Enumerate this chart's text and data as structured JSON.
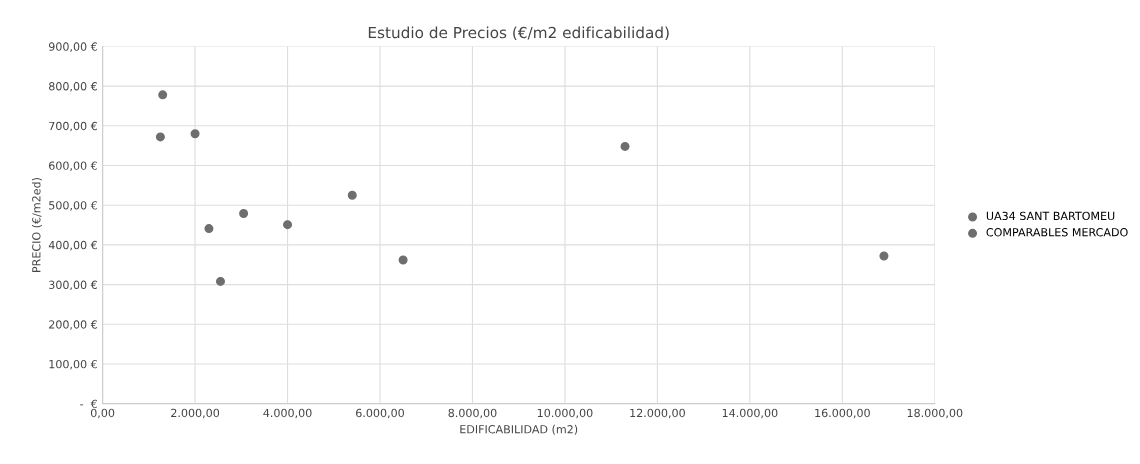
{
  "chart_data": {
    "type": "scatter",
    "title": "Estudio de Precios (€/m2 edificabilidad)",
    "xlabel": "EDIFICABILIDAD (m2)",
    "ylabel": "PRECIO (€/m2ed)",
    "series": [
      {
        "name": "UA34 SANT BARTOMEU",
        "color": "#6e6e6e",
        "x": [
          11300
        ],
        "values": [
          648
        ]
      },
      {
        "name": "COMPARABLES MERCADO",
        "color": "#6e6e6e",
        "x": [
          1250,
          1300,
          2000,
          2300,
          2550,
          3050,
          4000,
          5400,
          6500,
          16900
        ],
        "values": [
          672,
          778,
          680,
          441,
          308,
          479,
          451,
          525,
          362,
          372
        ]
      }
    ],
    "xlim": [
      0,
      18000
    ],
    "xticks": [
      {
        "value": 0,
        "label": "0,00"
      },
      {
        "value": 2000,
        "label": "2.000,00"
      },
      {
        "value": 4000,
        "label": "4.000,00"
      },
      {
        "value": 6000,
        "label": "6.000,00"
      },
      {
        "value": 8000,
        "label": "8.000,00"
      },
      {
        "value": 10000,
        "label": "10.000,00"
      },
      {
        "value": 12000,
        "label": "12.000,00"
      },
      {
        "value": 14000,
        "label": "14.000,00"
      },
      {
        "value": 16000,
        "label": "16.000,00"
      },
      {
        "value": 18000,
        "label": "18.000,00"
      }
    ],
    "ylim": [
      0,
      900
    ],
    "yticks": [
      {
        "value": 0,
        "label": "-  €"
      },
      {
        "value": 100,
        "label": "100,00 €"
      },
      {
        "value": 200,
        "label": "200,00 €"
      },
      {
        "value": 300,
        "label": "300,00 €"
      },
      {
        "value": 400,
        "label": "400,00 €"
      },
      {
        "value": 500,
        "label": "500,00 €"
      },
      {
        "value": 600,
        "label": "600,00 €"
      },
      {
        "value": 700,
        "label": "700,00 €"
      },
      {
        "value": 800,
        "label": "800,00 €"
      },
      {
        "value": 900,
        "label": "900,00 €"
      }
    ],
    "grid": true,
    "legend": "right",
    "marker": "circle"
  }
}
